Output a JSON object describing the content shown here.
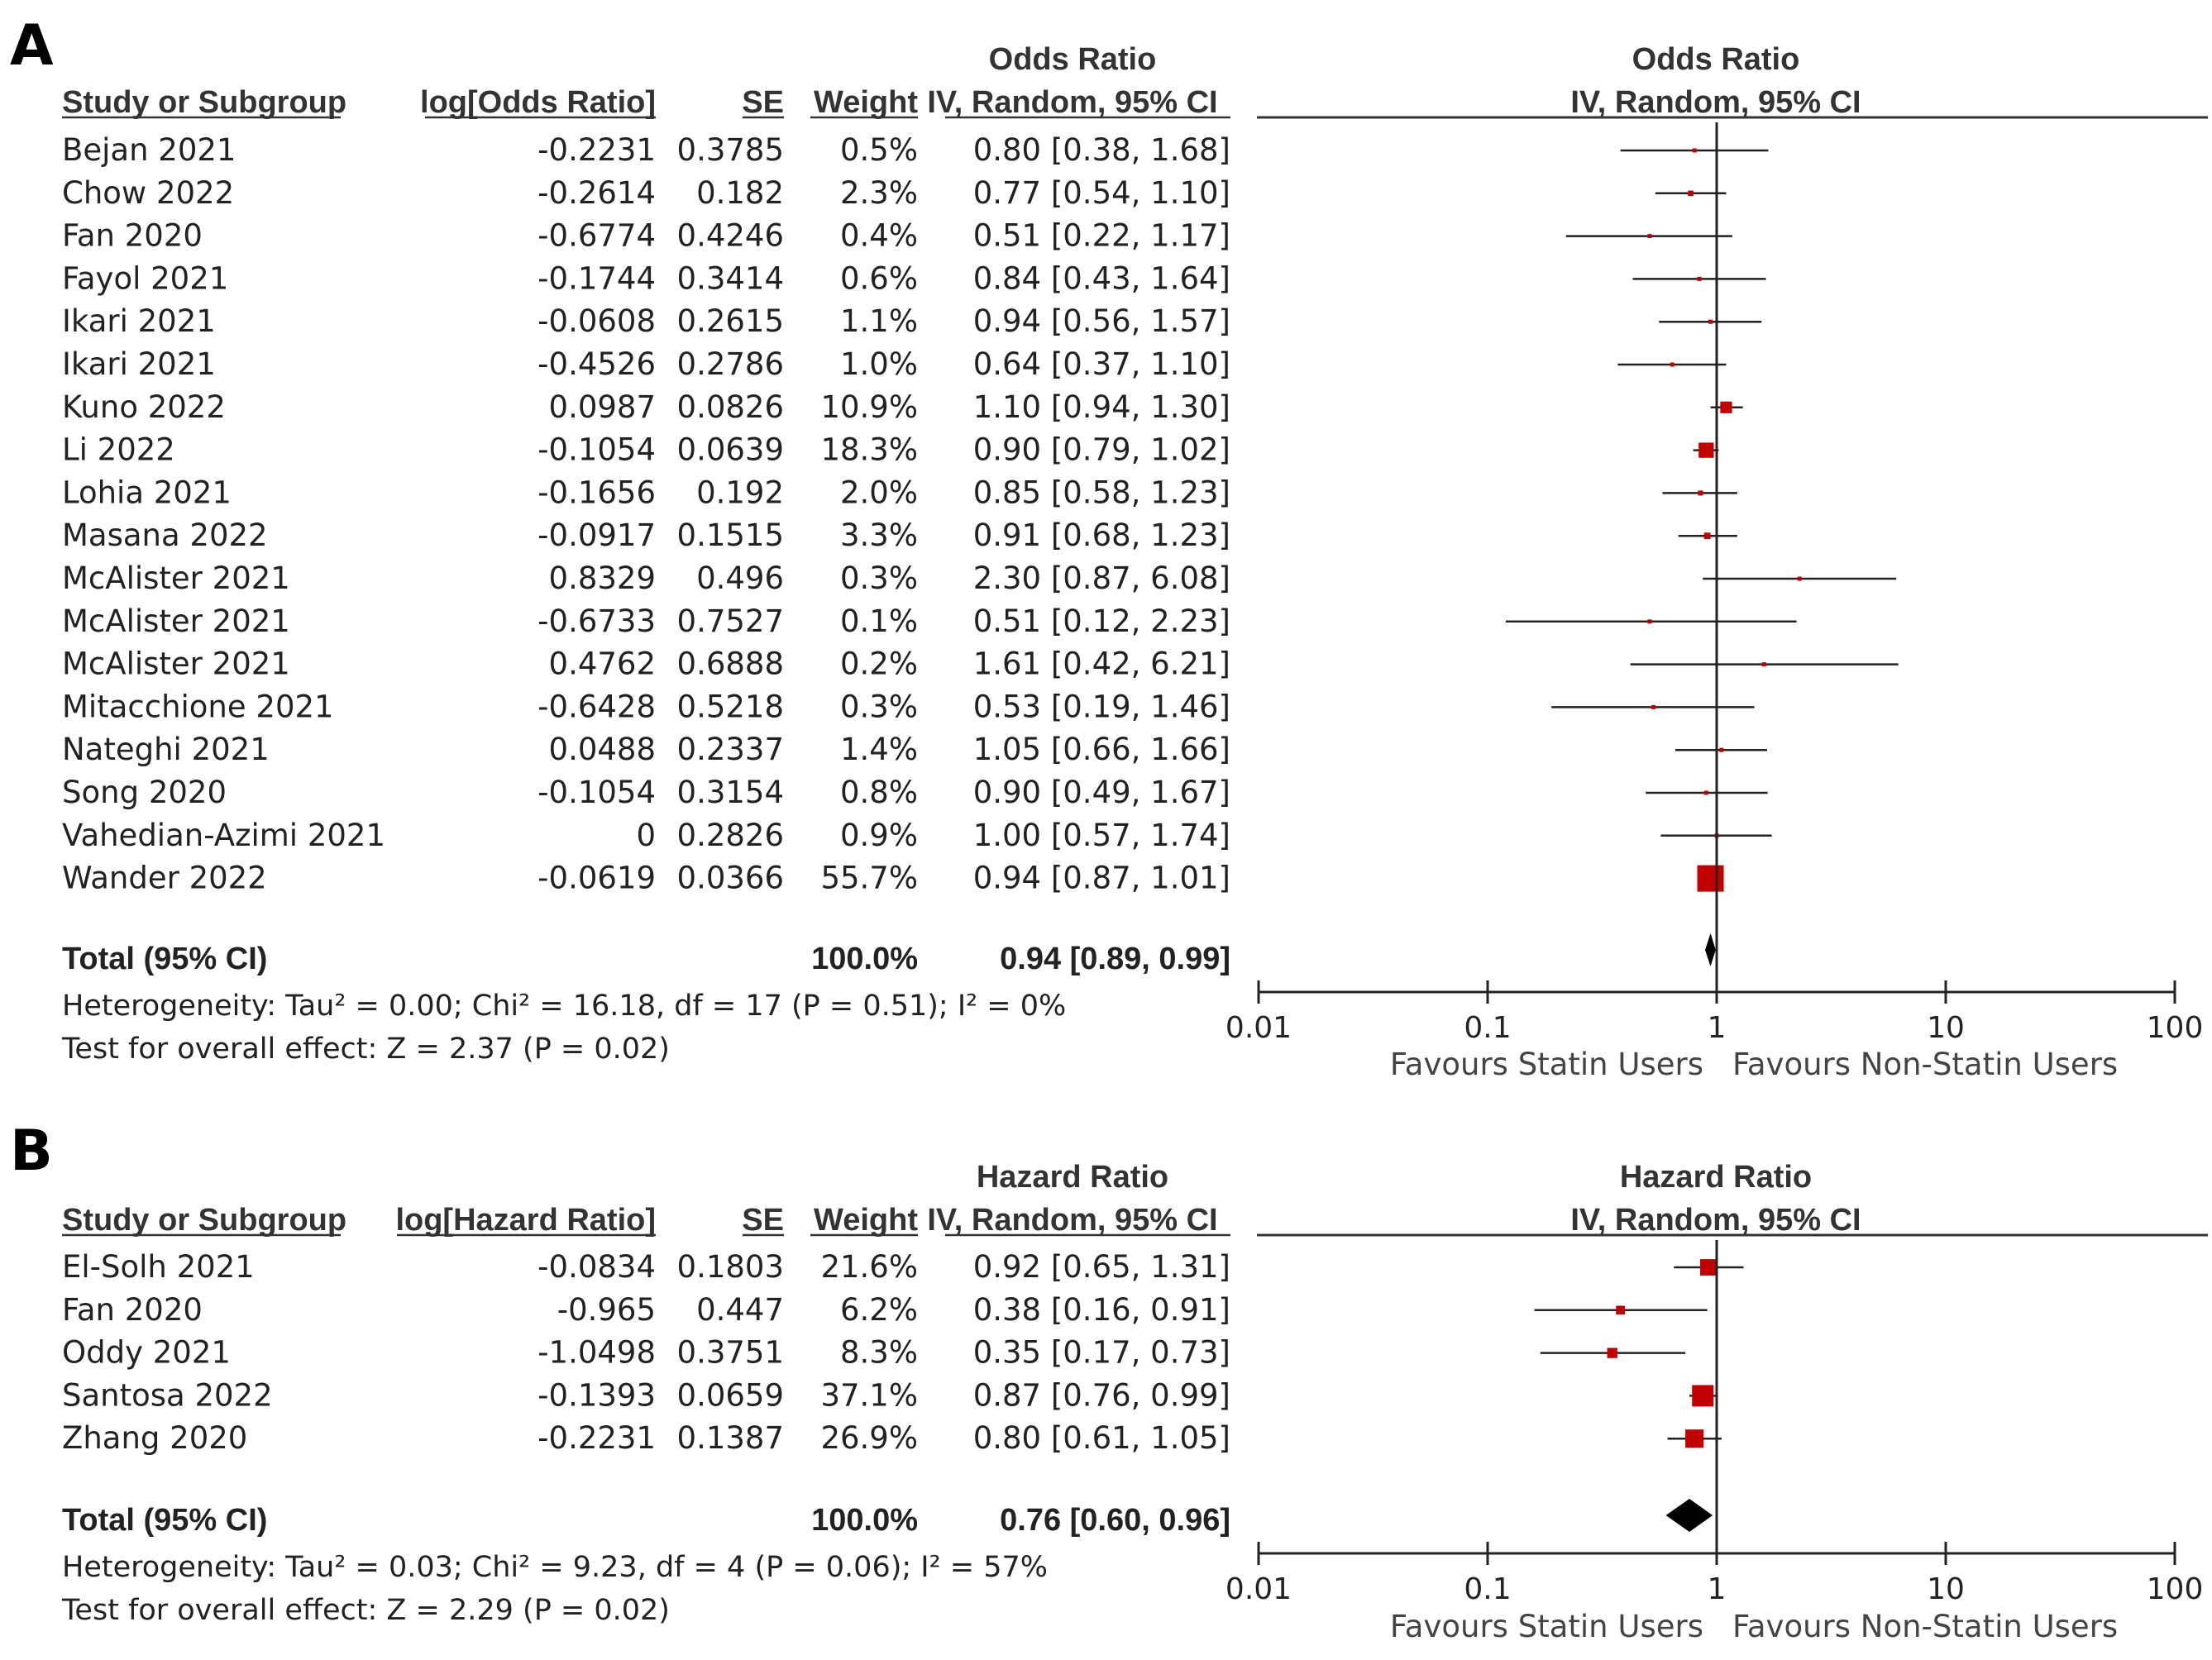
{
  "chart_data": [
    {
      "type": "forest",
      "panel": "A",
      "measure": "Odds Ratio",
      "method": "IV, Random, 95% CI",
      "columns": {
        "study": "Study or Subgroup",
        "log_effect": "log[Odds Ratio]",
        "se": "SE",
        "weight": "Weight",
        "effect_header_top": "Odds Ratio",
        "effect_header_bottom": "IV, Random, 95% CI",
        "plot_header_top": "Odds Ratio",
        "plot_header_bottom": "IV, Random, 95% CI"
      },
      "studies": [
        {
          "name": "Bejan 2021",
          "log": "-0.2231",
          "se": "0.3785",
          "weight": "0.5%",
          "ci_text": "0.80 [0.38, 1.68]",
          "est": 0.8,
          "lo": 0.38,
          "hi": 1.68,
          "w": 0.5
        },
        {
          "name": "Chow 2022",
          "log": "-0.2614",
          "se": "0.182",
          "weight": "2.3%",
          "ci_text": "0.77 [0.54, 1.10]",
          "est": 0.77,
          "lo": 0.54,
          "hi": 1.1,
          "w": 2.3
        },
        {
          "name": "Fan 2020",
          "log": "-0.6774",
          "se": "0.4246",
          "weight": "0.4%",
          "ci_text": "0.51 [0.22, 1.17]",
          "est": 0.51,
          "lo": 0.22,
          "hi": 1.17,
          "w": 0.4
        },
        {
          "name": "Fayol 2021",
          "log": "-0.1744",
          "se": "0.3414",
          "weight": "0.6%",
          "ci_text": "0.84 [0.43, 1.64]",
          "est": 0.84,
          "lo": 0.43,
          "hi": 1.64,
          "w": 0.6
        },
        {
          "name": "Ikari 2021",
          "log": "-0.0608",
          "se": "0.2615",
          "weight": "1.1%",
          "ci_text": "0.94 [0.56, 1.57]",
          "est": 0.94,
          "lo": 0.56,
          "hi": 1.57,
          "w": 1.1
        },
        {
          "name": "Ikari 2021",
          "log": "-0.4526",
          "se": "0.2786",
          "weight": "1.0%",
          "ci_text": "0.64 [0.37, 1.10]",
          "est": 0.64,
          "lo": 0.37,
          "hi": 1.1,
          "w": 1.0
        },
        {
          "name": "Kuno 2022",
          "log": "0.0987",
          "se": "0.0826",
          "weight": "10.9%",
          "ci_text": "1.10 [0.94, 1.30]",
          "est": 1.1,
          "lo": 0.94,
          "hi": 1.3,
          "w": 10.9
        },
        {
          "name": "Li 2022",
          "log": "-0.1054",
          "se": "0.0639",
          "weight": "18.3%",
          "ci_text": "0.90 [0.79, 1.02]",
          "est": 0.9,
          "lo": 0.79,
          "hi": 1.02,
          "w": 18.3
        },
        {
          "name": "Lohia 2021",
          "log": "-0.1656",
          "se": "0.192",
          "weight": "2.0%",
          "ci_text": "0.85 [0.58, 1.23]",
          "est": 0.85,
          "lo": 0.58,
          "hi": 1.23,
          "w": 2.0
        },
        {
          "name": "Masana 2022",
          "log": "-0.0917",
          "se": "0.1515",
          "weight": "3.3%",
          "ci_text": "0.91 [0.68, 1.23]",
          "est": 0.91,
          "lo": 0.68,
          "hi": 1.23,
          "w": 3.3
        },
        {
          "name": "McAlister 2021",
          "log": "0.8329",
          "se": "0.496",
          "weight": "0.3%",
          "ci_text": "2.30 [0.87, 6.08]",
          "est": 2.3,
          "lo": 0.87,
          "hi": 6.08,
          "w": 0.3
        },
        {
          "name": "McAlister 2021",
          "log": "-0.6733",
          "se": "0.7527",
          "weight": "0.1%",
          "ci_text": "0.51 [0.12, 2.23]",
          "est": 0.51,
          "lo": 0.12,
          "hi": 2.23,
          "w": 0.1
        },
        {
          "name": "McAlister 2021",
          "log": "0.4762",
          "se": "0.6888",
          "weight": "0.2%",
          "ci_text": "1.61 [0.42, 6.21]",
          "est": 1.61,
          "lo": 0.42,
          "hi": 6.21,
          "w": 0.2
        },
        {
          "name": "Mitacchione 2021",
          "log": "-0.6428",
          "se": "0.5218",
          "weight": "0.3%",
          "ci_text": "0.53 [0.19, 1.46]",
          "est": 0.53,
          "lo": 0.19,
          "hi": 1.46,
          "w": 0.3
        },
        {
          "name": "Nateghi 2021",
          "log": "0.0488",
          "se": "0.2337",
          "weight": "1.4%",
          "ci_text": "1.05 [0.66, 1.66]",
          "est": 1.05,
          "lo": 0.66,
          "hi": 1.66,
          "w": 1.4
        },
        {
          "name": "Song 2020",
          "log": "-0.1054",
          "se": "0.3154",
          "weight": "0.8%",
          "ci_text": "0.90 [0.49, 1.67]",
          "est": 0.9,
          "lo": 0.49,
          "hi": 1.67,
          "w": 0.8
        },
        {
          "name": "Vahedian-Azimi 2021",
          "log": "0",
          "se": "0.2826",
          "weight": "0.9%",
          "ci_text": "1.00 [0.57, 1.74]",
          "est": 1.0,
          "lo": 0.57,
          "hi": 1.74,
          "w": 0.9
        },
        {
          "name": "Wander 2022",
          "log": "-0.0619",
          "se": "0.0366",
          "weight": "55.7%",
          "ci_text": "0.94 [0.87, 1.01]",
          "est": 0.94,
          "lo": 0.87,
          "hi": 1.01,
          "w": 55.7
        }
      ],
      "total": {
        "label": "Total (95% CI)",
        "weight": "100.0%",
        "ci_text": "0.94 [0.89, 0.99]",
        "est": 0.94,
        "lo": 0.89,
        "hi": 0.99
      },
      "heterogeneity": "Heterogeneity: Tau² = 0.00; Chi² = 16.18, df = 17 (P = 0.51); I² = 0%",
      "overall_effect": "Test for overall effect: Z = 2.37 (P = 0.02)",
      "axis": {
        "scale": "log",
        "range": [
          0.01,
          100
        ],
        "ticks": [
          0.01,
          0.1,
          1,
          10,
          100
        ],
        "tick_labels": [
          "0.01",
          "0.1",
          "1",
          "10",
          "100"
        ]
      },
      "favours_left": "Favours Statin Users",
      "favours_right": "Favours Non-Statin Users"
    },
    {
      "type": "forest",
      "panel": "B",
      "measure": "Hazard Ratio",
      "method": "IV, Random, 95% CI",
      "columns": {
        "study": "Study or Subgroup",
        "log_effect": "log[Hazard Ratio]",
        "se": "SE",
        "weight": "Weight",
        "effect_header_top": "Hazard Ratio",
        "effect_header_bottom": "IV, Random, 95% CI",
        "plot_header_top": "Hazard Ratio",
        "plot_header_bottom": "IV, Random, 95% CI"
      },
      "studies": [
        {
          "name": "El-Solh 2021",
          "log": "-0.0834",
          "se": "0.1803",
          "weight": "21.6%",
          "ci_text": "0.92 [0.65, 1.31]",
          "est": 0.92,
          "lo": 0.65,
          "hi": 1.31,
          "w": 21.6
        },
        {
          "name": "Fan 2020",
          "log": "-0.965",
          "se": "0.447",
          "weight": "6.2%",
          "ci_text": "0.38 [0.16, 0.91]",
          "est": 0.38,
          "lo": 0.16,
          "hi": 0.91,
          "w": 6.2
        },
        {
          "name": "Oddy 2021",
          "log": "-1.0498",
          "se": "0.3751",
          "weight": "8.3%",
          "ci_text": "0.35 [0.17, 0.73]",
          "est": 0.35,
          "lo": 0.17,
          "hi": 0.73,
          "w": 8.3
        },
        {
          "name": "Santosa 2022",
          "log": "-0.1393",
          "se": "0.0659",
          "weight": "37.1%",
          "ci_text": "0.87 [0.76, 0.99]",
          "est": 0.87,
          "lo": 0.76,
          "hi": 0.99,
          "w": 37.1
        },
        {
          "name": "Zhang 2020",
          "log": "-0.2231",
          "se": "0.1387",
          "weight": "26.9%",
          "ci_text": "0.80 [0.61, 1.05]",
          "est": 0.8,
          "lo": 0.61,
          "hi": 1.05,
          "w": 26.9
        }
      ],
      "total": {
        "label": "Total (95% CI)",
        "weight": "100.0%",
        "ci_text": "0.76 [0.60, 0.96]",
        "est": 0.76,
        "lo": 0.6,
        "hi": 0.96
      },
      "heterogeneity": "Heterogeneity: Tau² = 0.03; Chi² = 9.23, df = 4 (P = 0.06); I² = 57%",
      "overall_effect": "Test for overall effect: Z = 2.29 (P = 0.02)",
      "axis": {
        "scale": "log",
        "range": [
          0.01,
          100
        ],
        "ticks": [
          0.01,
          0.1,
          1,
          10,
          100
        ],
        "tick_labels": [
          "0.01",
          "0.1",
          "1",
          "10",
          "100"
        ]
      },
      "favours_left": "Favours Statin Users",
      "favours_right": "Favours Non-Statin Users"
    }
  ],
  "colors": {
    "marker": "#c00000",
    "line": "#222222",
    "diamond": "#000000"
  }
}
